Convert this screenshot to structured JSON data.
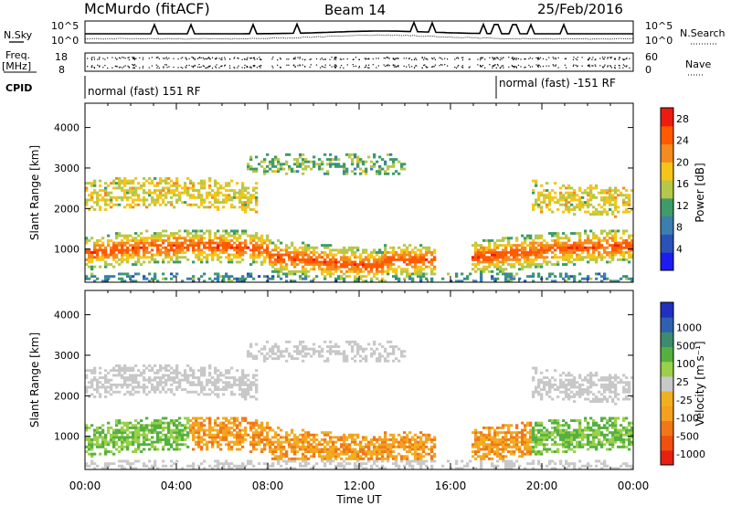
{
  "header": {
    "station": "McMurdo (fitACF)",
    "beam": "Beam 14",
    "date": "25/Feb/2016"
  },
  "status": {
    "nsky_label": "N.Sky",
    "nsearch_label": "N.Search",
    "freq_label": "Freq.",
    "freq_unit": "[MHz]",
    "nave_label": "Nave",
    "cpid_label": "CPID",
    "noise_ticks_left": [
      "10^5",
      "10^0"
    ],
    "noise_ticks_right": [
      "10^5",
      "10^0"
    ],
    "freq_ticks": [
      "18",
      "8"
    ],
    "nave_ticks": [
      "60",
      "0"
    ],
    "cpid_segments": [
      {
        "label": "normal (fast) 151 RF",
        "start_hour": 0
      },
      {
        "label": "normal (fast) -151 RF",
        "start_hour": 18.1
      }
    ]
  },
  "chart_data": [
    {
      "type": "heatmap",
      "panel": "power",
      "title": "",
      "xlabel": "",
      "ylabel": "Slant Range [km]",
      "xlim_hours": [
        0,
        24
      ],
      "ylim": [
        180,
        4600
      ],
      "y_ticks": [
        1000,
        2000,
        3000,
        4000
      ],
      "colorbar_label": "Power [dB]",
      "colorbar_ticks": [
        "4",
        "8",
        "12",
        "16",
        "20",
        "24",
        "28"
      ],
      "colorbar_colors": [
        "#1c1cf0",
        "#2a52b8",
        "#3b7fb0",
        "#3e9b6a",
        "#b5c84a",
        "#f5c518",
        "#f58a1e",
        "#ff5a00",
        "#ee1b10"
      ],
      "colorbar_range": [
        0,
        30
      ]
    },
    {
      "type": "heatmap",
      "panel": "velocity",
      "title": "",
      "xlabel": "Time UT",
      "ylabel": "Slant Range [km]",
      "xlim_hours": [
        0,
        24
      ],
      "ylim": [
        180,
        4600
      ],
      "y_ticks": [
        1000,
        2000,
        3000,
        4000
      ],
      "x_tick_labels": [
        "00:00",
        "04:00",
        "08:00",
        "12:00",
        "16:00",
        "20:00",
        "00:00"
      ],
      "colorbar_label": "Velocity [m s⁻¹]",
      "colorbar_ticks": [
        "1000",
        "500",
        "100",
        "25",
        "-25",
        "-100",
        "-500",
        "-1000"
      ],
      "colorbar_colors": [
        "#2030c0",
        "#3060b0",
        "#3d8c70",
        "#55b040",
        "#9ad04a",
        "#c8c8c8",
        "#f0b020",
        "#f5a020",
        "#f07818",
        "#f05010",
        "#e82010"
      ]
    }
  ]
}
